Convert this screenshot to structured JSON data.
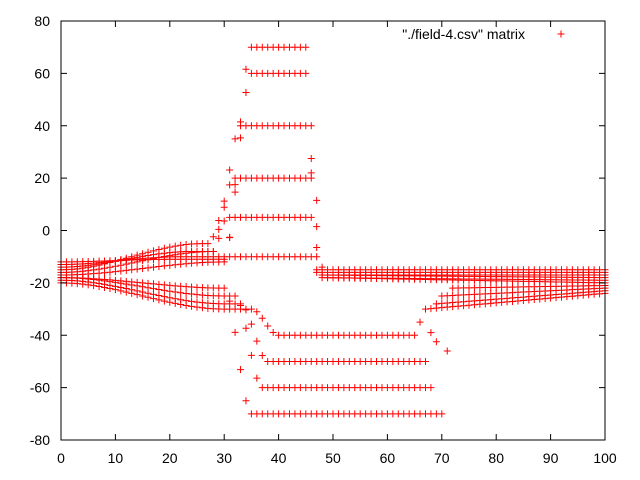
{
  "chart_data": {
    "type": "scatter",
    "marker": "+",
    "color": "#ff0000",
    "title": "",
    "xlabel": "",
    "ylabel": "",
    "xlim": [
      0,
      100
    ],
    "ylim": [
      -80,
      80
    ],
    "x_ticks": [
      0,
      10,
      20,
      30,
      40,
      50,
      60,
      70,
      80,
      90,
      100
    ],
    "y_ticks": [
      -80,
      -60,
      -40,
      -20,
      0,
      20,
      40,
      60,
      80
    ],
    "x_tick_labels": [
      "0",
      "10",
      "20",
      "30",
      "40",
      "50",
      "60",
      "70",
      "80",
      "90",
      "100"
    ],
    "y_tick_labels": [
      "-80",
      "-60",
      "-40",
      "-20",
      "0",
      "20",
      "40",
      "60",
      "80"
    ],
    "grid": false,
    "legend_position": "top-right",
    "series": [
      {
        "name": "\"./field-4.csv\" matrix",
        "description_of_structure": "",
        "x_start": 0,
        "x_end": 100,
        "x_step": 1,
        "rows": [
          {
            "left": -12,
            "mid_x": 20,
            "mid": -11,
            "plateau_start": 35,
            "plateau_end": 45,
            "plateau": 70,
            "after": -15,
            "right": -15
          },
          {
            "left": -13,
            "mid_x": 22,
            "mid": -10,
            "plateau_start": 35,
            "plateau_end": 45,
            "plateau": 60,
            "after": -16,
            "right": -16
          },
          {
            "left": -14,
            "mid_x": 24,
            "mid": -8,
            "plateau_start": 33,
            "plateau_end": 46,
            "plateau": 40,
            "after": -17,
            "right": -17
          },
          {
            "left": -15,
            "mid_x": 26,
            "mid": -5,
            "plateau_start": 32,
            "plateau_end": 46,
            "plateau": 20,
            "after": -17,
            "right": -18
          },
          {
            "left": -16,
            "mid_x": 28,
            "mid": -8,
            "plateau_start": 31,
            "plateau_end": 46,
            "plateau": 5,
            "after": -18,
            "right": -19
          },
          {
            "left": -17,
            "mid_x": 30,
            "mid": -12,
            "plateau_start": 30,
            "plateau_end": 47,
            "plateau": -10,
            "after": -18,
            "right": -20
          },
          {
            "left": -18,
            "mid_x": 30,
            "mid": -22,
            "plateau_start": 35,
            "plateau_end": 70,
            "plateau": -70,
            "after": -22,
            "right": -21
          },
          {
            "left": -18,
            "mid_x": 30,
            "mid": -25,
            "plateau_start": 37,
            "plateau_end": 68,
            "plateau": -60,
            "after": -25,
            "right": -22
          },
          {
            "left": -19,
            "mid_x": 30,
            "mid": -28,
            "plateau_start": 38,
            "plateau_end": 67,
            "plateau": -50,
            "after": -28,
            "right": -23
          },
          {
            "left": -20,
            "mid_x": 30,
            "mid": -30,
            "plateau_start": 40,
            "plateau_end": 65,
            "plateau": -40,
            "after": -30,
            "right": -24
          }
        ]
      }
    ]
  }
}
